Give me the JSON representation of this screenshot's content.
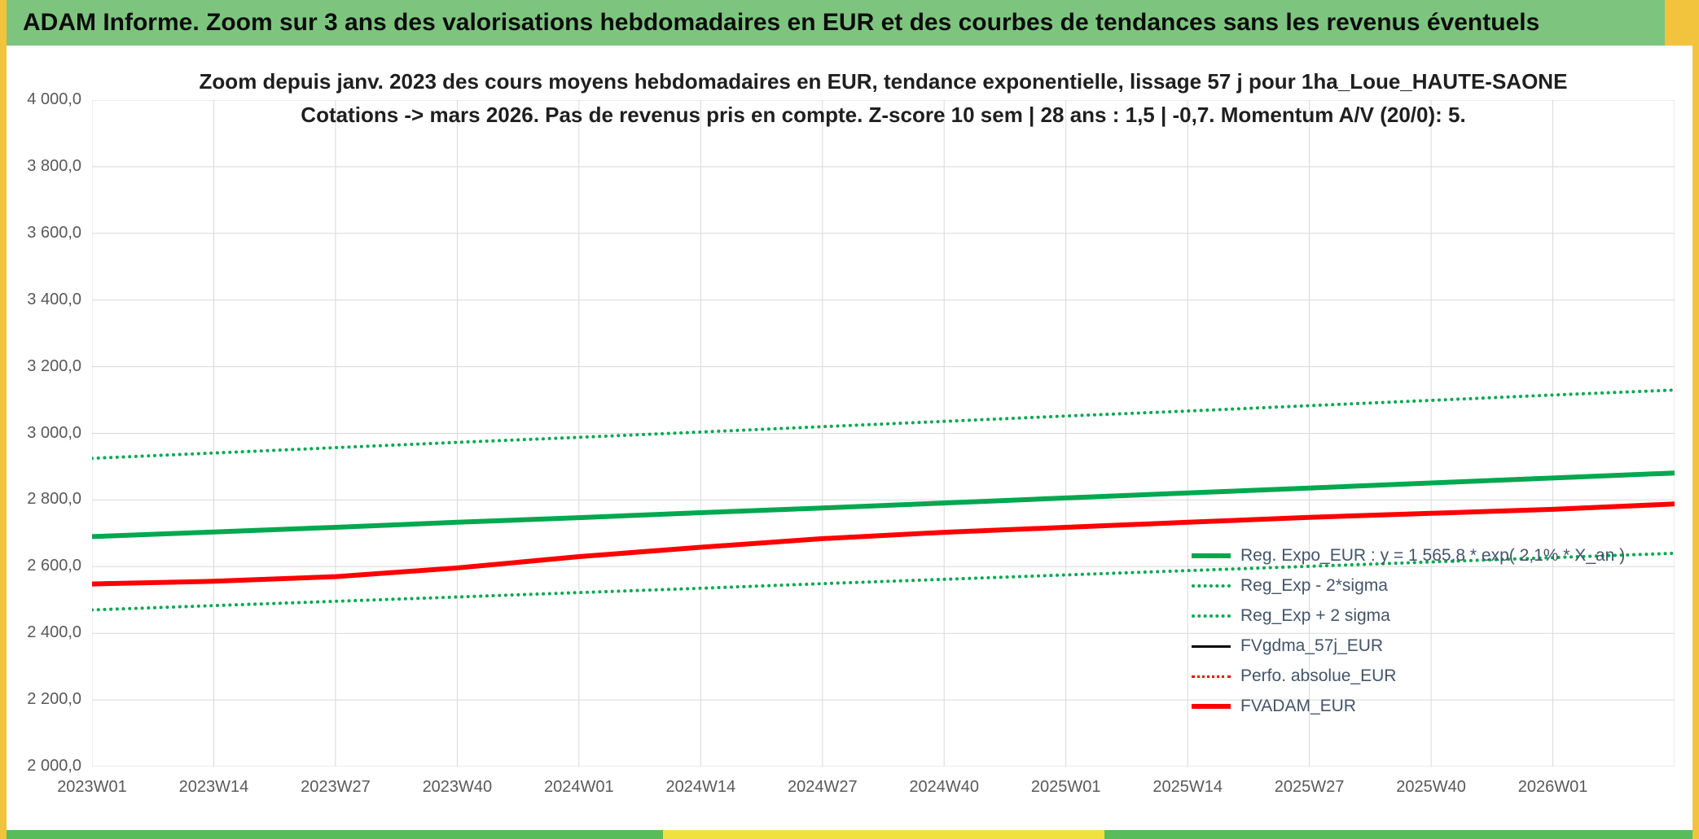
{
  "frame": {
    "header_title": "ADAM Informe. Zoom sur 3 ans des valorisations hebdomadaires en EUR et des courbes de tendances sans les revenus éventuels",
    "colors": {
      "header_bg": "#7DC57F",
      "accent_yellow": "#F2C33C",
      "bottom_green": "#58BC5B",
      "bottom_yellow": "#F1E13F"
    }
  },
  "chart_data": {
    "type": "line",
    "title_line1": "Zoom depuis janv. 2023 des cours moyens hebdomadaires en EUR, tendance exponentielle, lissage 57 j pour 1ha_Loue_HAUTE-SAONE",
    "title_line2": "Cotations -> mars 2026. Pas de revenus pris en compte. Z-score 10 sem | 28 ans : 1,5 | -0,7. Momentum A/V (20/0): 5.",
    "title_color": "#1F1F1F",
    "grid": true,
    "grid_color": "#D9D9D9",
    "axis_text_color": "#595959",
    "legend_text_color": "#44546A",
    "legend_position": "inside-right",
    "ylim": [
      2000,
      4000
    ],
    "y_step": 200,
    "y_tick_labels": [
      "2 000,0",
      "2 200,0",
      "2 400,0",
      "2 600,0",
      "2 800,0",
      "3 000,0",
      "3 200,0",
      "3 400,0",
      "3 600,0",
      "3 800,0",
      "4 000,0"
    ],
    "x_tick_labels": [
      "2023W01",
      "2023W14",
      "2023W27",
      "2023W40",
      "2024W01",
      "2024W14",
      "2024W27",
      "2024W40",
      "2025W01",
      "2025W14",
      "2025W27",
      "2025W40",
      "2026W01"
    ],
    "x_tick_weeks": [
      0,
      13,
      26,
      39,
      52,
      65,
      78,
      91,
      104,
      117,
      130,
      143,
      156
    ],
    "x_grid_weeks": [
      0,
      13,
      26,
      39,
      52,
      65,
      78,
      91,
      104,
      117,
      130,
      143,
      156,
      169
    ],
    "x_domain_weeks": [
      0,
      169
    ],
    "sample_weeks": [
      0,
      13,
      26,
      39,
      52,
      65,
      78,
      91,
      104,
      117,
      130,
      143,
      156,
      169
    ],
    "series": [
      {
        "name": "Reg. Expo_EUR : y = 1 565,8 * exp( 2,1% *  X_an )",
        "color": "#00A84F",
        "width": 6,
        "style": "solid",
        "values": [
          2690,
          2704,
          2718,
          2733,
          2747,
          2762,
          2776,
          2791,
          2806,
          2821,
          2836,
          2851,
          2866,
          2881
        ]
      },
      {
        "name": "Reg_Exp - 2*sigma",
        "color": "#00A84F",
        "width": 4,
        "style": "dotted",
        "values": [
          2470,
          2483,
          2496,
          2509,
          2522,
          2535,
          2549,
          2562,
          2575,
          2588,
          2601,
          2614,
          2627,
          2640
        ]
      },
      {
        "name": "Reg_Exp + 2 sigma",
        "color": "#00A84F",
        "width": 4,
        "style": "dotted",
        "values": [
          2925,
          2941,
          2957,
          2973,
          2988,
          3004,
          3020,
          3036,
          3052,
          3067,
          3083,
          3099,
          3115,
          3130
        ]
      },
      {
        "name": "FVgdma_57j_EUR",
        "color": "#000000",
        "width": 3,
        "style": "solid",
        "values": [
          2548,
          2556,
          2570,
          2596,
          2630,
          2658,
          2684,
          2703,
          2718,
          2733,
          2748,
          2760,
          2772,
          2788
        ]
      },
      {
        "name": "Perfo. absolue_EUR",
        "color": "#FF0000",
        "width": 3,
        "style": "dotted",
        "values": [
          2548,
          2556,
          2570,
          2596,
          2630,
          2658,
          2684,
          2703,
          2718,
          2733,
          2748,
          2760,
          2772,
          2788
        ]
      },
      {
        "name": "FVADAM_EUR",
        "color": "#FF0000",
        "width": 6,
        "style": "solid",
        "values": [
          2548,
          2556,
          2570,
          2596,
          2630,
          2658,
          2684,
          2703,
          2718,
          2733,
          2748,
          2760,
          2772,
          2788
        ]
      }
    ]
  }
}
